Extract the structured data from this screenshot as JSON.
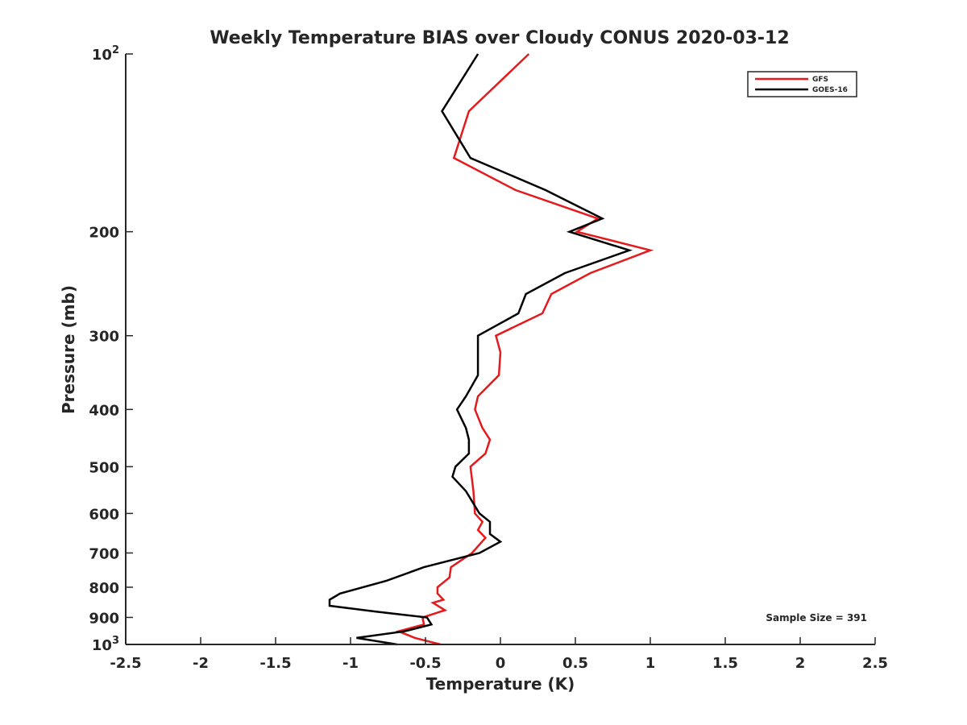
{
  "chart_data": {
    "type": "line",
    "title": "Weekly Temperature BIAS over Cloudy CONUS 2020-03-12",
    "xlabel": "Temperature (K)",
    "ylabel": "Pressure (mb)",
    "xlim": [
      -2.5,
      2.5
    ],
    "ylim": [
      1000,
      100
    ],
    "y_scale": "log",
    "y_reversed": true,
    "x_ticks": [
      -2.5,
      -2,
      -1.5,
      -1,
      -0.5,
      0,
      0.5,
      1,
      1.5,
      2,
      2.5
    ],
    "x_tick_labels": [
      "-2.5",
      "-2",
      "-1.5",
      "-1",
      "-0.5",
      "0",
      "0.5",
      "1",
      "1.5",
      "2",
      "2.5"
    ],
    "y_ticks": [
      {
        "value": 100,
        "base": "10",
        "exp": "2",
        "label": ""
      },
      {
        "value": 200,
        "base": "",
        "exp": "",
        "label": "200"
      },
      {
        "value": 300,
        "base": "",
        "exp": "",
        "label": "300"
      },
      {
        "value": 400,
        "base": "",
        "exp": "",
        "label": "400"
      },
      {
        "value": 500,
        "base": "",
        "exp": "",
        "label": "500"
      },
      {
        "value": 600,
        "base": "",
        "exp": "",
        "label": "600"
      },
      {
        "value": 700,
        "base": "",
        "exp": "",
        "label": "700"
      },
      {
        "value": 800,
        "base": "",
        "exp": "",
        "label": "800"
      },
      {
        "value": 900,
        "base": "",
        "exp": "",
        "label": "900"
      },
      {
        "value": 1000,
        "base": "10",
        "exp": "3",
        "label": ""
      }
    ],
    "grid": false,
    "legend_position": "top-right",
    "annotation": "Sample Size = 391",
    "series": [
      {
        "name": "GFS",
        "color": "#e41a1c",
        "points": [
          {
            "x": 0.19,
            "y": 100
          },
          {
            "x": -0.21,
            "y": 125
          },
          {
            "x": -0.31,
            "y": 150
          },
          {
            "x": 0.1,
            "y": 170
          },
          {
            "x": 0.65,
            "y": 190
          },
          {
            "x": 0.51,
            "y": 200
          },
          {
            "x": 1.0,
            "y": 215
          },
          {
            "x": 0.6,
            "y": 235
          },
          {
            "x": 0.34,
            "y": 255
          },
          {
            "x": 0.28,
            "y": 275
          },
          {
            "x": -0.03,
            "y": 300
          },
          {
            "x": 0.0,
            "y": 320
          },
          {
            "x": -0.01,
            "y": 350
          },
          {
            "x": -0.15,
            "y": 380
          },
          {
            "x": -0.17,
            "y": 400
          },
          {
            "x": -0.12,
            "y": 430
          },
          {
            "x": -0.07,
            "y": 450
          },
          {
            "x": -0.1,
            "y": 475
          },
          {
            "x": -0.2,
            "y": 500
          },
          {
            "x": -0.18,
            "y": 550
          },
          {
            "x": -0.17,
            "y": 600
          },
          {
            "x": -0.12,
            "y": 620
          },
          {
            "x": -0.15,
            "y": 640
          },
          {
            "x": -0.1,
            "y": 660
          },
          {
            "x": -0.19,
            "y": 700
          },
          {
            "x": -0.33,
            "y": 740
          },
          {
            "x": -0.34,
            "y": 770
          },
          {
            "x": -0.42,
            "y": 800
          },
          {
            "x": -0.42,
            "y": 820
          },
          {
            "x": -0.38,
            "y": 840
          },
          {
            "x": -0.45,
            "y": 850
          },
          {
            "x": -0.37,
            "y": 875
          },
          {
            "x": -0.52,
            "y": 900
          },
          {
            "x": -0.51,
            "y": 925
          },
          {
            "x": -0.68,
            "y": 950
          },
          {
            "x": -0.57,
            "y": 975
          },
          {
            "x": -0.4,
            "y": 1000
          }
        ]
      },
      {
        "name": "GOES-16",
        "color": "#000000",
        "points": [
          {
            "x": -0.15,
            "y": 100
          },
          {
            "x": -0.39,
            "y": 125
          },
          {
            "x": -0.2,
            "y": 150
          },
          {
            "x": 0.3,
            "y": 170
          },
          {
            "x": 0.68,
            "y": 190
          },
          {
            "x": 0.46,
            "y": 200
          },
          {
            "x": 0.86,
            "y": 215
          },
          {
            "x": 0.43,
            "y": 235
          },
          {
            "x": 0.17,
            "y": 255
          },
          {
            "x": 0.12,
            "y": 275
          },
          {
            "x": -0.15,
            "y": 300
          },
          {
            "x": -0.15,
            "y": 320
          },
          {
            "x": -0.15,
            "y": 350
          },
          {
            "x": -0.23,
            "y": 380
          },
          {
            "x": -0.29,
            "y": 400
          },
          {
            "x": -0.23,
            "y": 430
          },
          {
            "x": -0.21,
            "y": 450
          },
          {
            "x": -0.21,
            "y": 475
          },
          {
            "x": -0.3,
            "y": 500
          },
          {
            "x": -0.32,
            "y": 520
          },
          {
            "x": -0.23,
            "y": 550
          },
          {
            "x": -0.14,
            "y": 600
          },
          {
            "x": -0.07,
            "y": 620
          },
          {
            "x": -0.07,
            "y": 650
          },
          {
            "x": 0.0,
            "y": 670
          },
          {
            "x": -0.14,
            "y": 700
          },
          {
            "x": -0.51,
            "y": 740
          },
          {
            "x": -0.76,
            "y": 780
          },
          {
            "x": -1.07,
            "y": 820
          },
          {
            "x": -1.14,
            "y": 840
          },
          {
            "x": -1.14,
            "y": 860
          },
          {
            "x": -0.83,
            "y": 880
          },
          {
            "x": -0.49,
            "y": 900
          },
          {
            "x": -0.46,
            "y": 925
          },
          {
            "x": -0.64,
            "y": 950
          },
          {
            "x": -0.96,
            "y": 975
          },
          {
            "x": -0.69,
            "y": 1000
          }
        ]
      }
    ]
  }
}
